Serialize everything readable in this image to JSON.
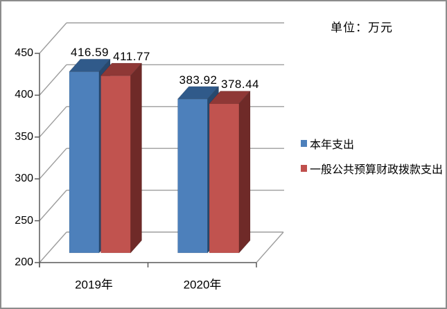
{
  "chart_data": {
    "type": "bar",
    "style": "3d-clustered-column",
    "title": "单位：万元",
    "categories": [
      "2019年",
      "2020年"
    ],
    "series": [
      {
        "name": "本年支出",
        "color": "#4d80bb",
        "face_colors": {
          "front": "#4d80bb",
          "top": "#305a8a",
          "side": "#27496f"
        },
        "values": [
          416.59,
          383.92
        ]
      },
      {
        "name": "一般公共预算财政拨款支出",
        "color": "#c0504d",
        "face_colors": {
          "front": "#c1534f",
          "top": "#8f3836",
          "side": "#6f2a28"
        },
        "values": [
          411.77,
          378.44
        ]
      }
    ],
    "data_labels": [
      "416.59",
      "411.77",
      "383.92",
      "378.44"
    ],
    "ylim": [
      200,
      450
    ],
    "yticks": [
      200,
      250,
      300,
      350,
      400,
      450
    ],
    "grid": true,
    "data_labels_shown": true,
    "legend_position": "right"
  },
  "colors": {
    "axis_line": "#595959",
    "gridline": "#9d9d9d",
    "text": "#000000",
    "background": "#ffffff",
    "outer_border": "#8c8c8c"
  }
}
